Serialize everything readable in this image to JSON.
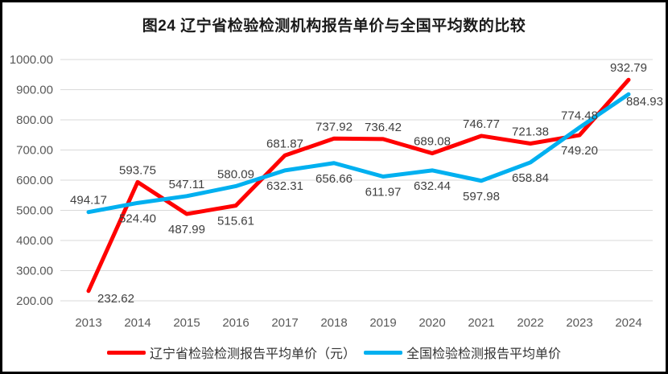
{
  "title": "图24 辽宁省检验检测机构报告单价与全国平均数的比较",
  "chart_data": {
    "type": "line",
    "title": "图24 辽宁省检验检测机构报告单价与全国平均数的比较",
    "categories": [
      "2013",
      "2014",
      "2015",
      "2016",
      "2017",
      "2018",
      "2019",
      "2020",
      "2021",
      "2022",
      "2023",
      "2024"
    ],
    "series": [
      {
        "name": "辽宁省检验检测报告平均单价（元）",
        "color": "#FF0000",
        "values": [
          232.62,
          593.75,
          487.99,
          515.61,
          681.87,
          737.92,
          736.42,
          689.08,
          746.77,
          721.38,
          749.2,
          932.79
        ]
      },
      {
        "name": "全国检验检测报告平均单价",
        "color": "#00B0F0",
        "values": [
          494.17,
          524.4,
          547.11,
          580.09,
          632.31,
          656.66,
          611.97,
          632.44,
          597.98,
          658.84,
          774.48,
          884.93
        ]
      }
    ],
    "ylim": [
      200,
      1000
    ],
    "yticks": [
      "1000.00",
      "900.00",
      "800.00",
      "700.00",
      "600.00",
      "500.00",
      "400.00",
      "300.00",
      "200.00"
    ],
    "xlabel": "",
    "ylabel": "",
    "grid": true,
    "data_labels": true,
    "label_decimals": 2,
    "legend_position": "bottom",
    "label_overrides": {
      "0-0": [
        34,
        14
      ],
      "1-11": [
        20,
        14
      ]
    }
  },
  "colors": {
    "gridline": "#D9D9D9",
    "axis_text": "#595959",
    "data_label_text": "#3F3F3F",
    "title_text": "#1a1a1a",
    "frame": "#000000"
  }
}
